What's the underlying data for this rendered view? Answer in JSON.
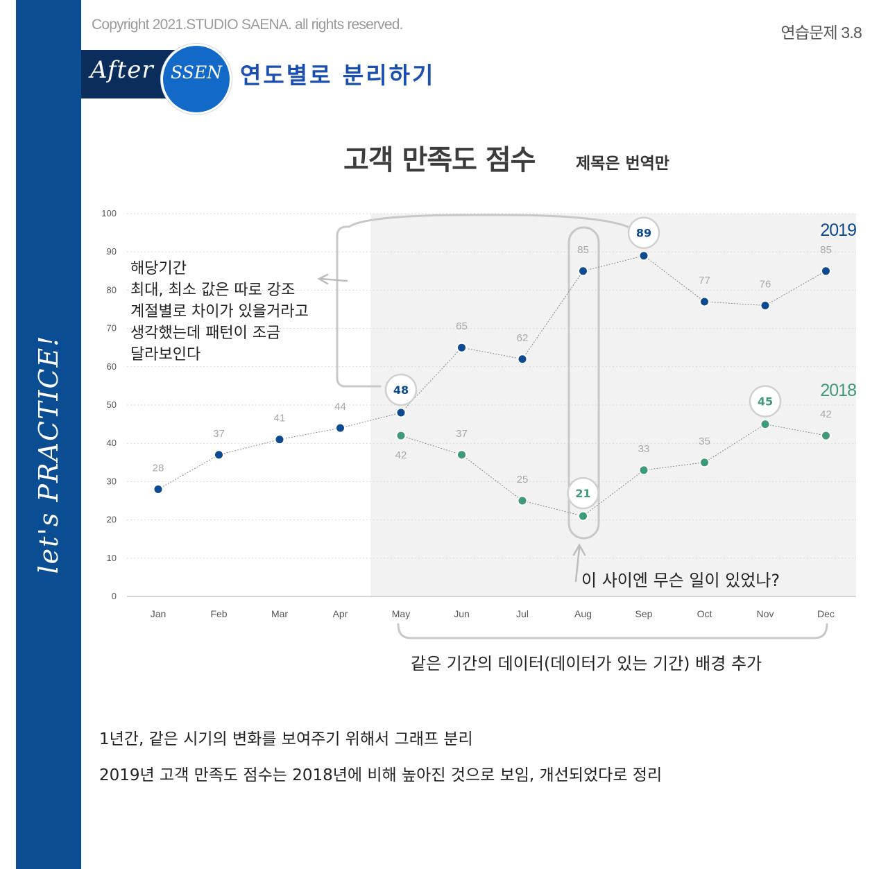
{
  "header": {
    "copyright": "Copyright 2021.STUDIO SAENA. all rights reserved.",
    "exercise": "연습문제 3.8",
    "after_label": "After",
    "sseen_label": "SSEN",
    "title": "연도별로 분리하기",
    "sidebar_text": "let's PRACTICE!"
  },
  "colors": {
    "sidebar": "#0a4d92",
    "series_2019": "#0d4a8f",
    "series_2018": "#3f9a78",
    "highlight_bg": "#f2f2f2"
  },
  "chart_data": {
    "type": "line",
    "title": "고객 만족도 점수",
    "subtitle": "제목은 번역만",
    "categories": [
      "Jan",
      "Feb",
      "Mar",
      "Apr",
      "May",
      "Jun",
      "Jul",
      "Aug",
      "Sep",
      "Oct",
      "Nov",
      "Dec"
    ],
    "ylim": [
      0,
      100
    ],
    "yticks": [
      0,
      10,
      20,
      30,
      40,
      50,
      60,
      70,
      80,
      90,
      100
    ],
    "grid": "horizontal dotted",
    "highlight_range": [
      "May",
      "Dec"
    ],
    "series": [
      {
        "name": "2019",
        "values": [
          28,
          37,
          41,
          44,
          48,
          65,
          62,
          85,
          89,
          77,
          76,
          85
        ],
        "label_position": [
          "above",
          "above",
          "above",
          "above",
          "above",
          "above",
          "above",
          "above",
          "above",
          "above",
          "above",
          "above"
        ],
        "emphasized": [
          4,
          8
        ]
      },
      {
        "name": "2018",
        "values": [
          null,
          null,
          null,
          null,
          42,
          37,
          25,
          21,
          33,
          35,
          45,
          42
        ],
        "label_position": [
          null,
          null,
          null,
          null,
          "below",
          "above",
          "above",
          "above",
          "above",
          "above",
          "above",
          "above"
        ],
        "emphasized": [
          7,
          10
        ]
      }
    ]
  },
  "annotations": {
    "left_note": [
      "해당기간",
      "최대, 최소 값은 따로 강조",
      "계절별로 차이가 있을거라고",
      "생각했는데 패턴이 조금",
      "달라보인다"
    ],
    "question": "이 사이엔 무슨 일이 있었나?",
    "bracket_note": "같은 기간의 데이터(데이터가 있는 기간) 배경 추가"
  },
  "footnotes": [
    "1년간, 같은 시기의 변화를 보여주기 위해서 그래프 분리",
    "2019년 고객 만족도 점수는 2018년에 비해 높아진 것으로 보임, 개선되었다로 정리"
  ]
}
